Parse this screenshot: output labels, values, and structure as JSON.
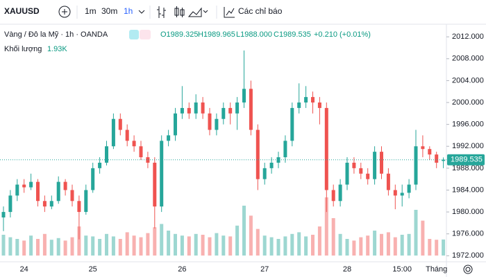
{
  "toolbar": {
    "symbol": "XAUUSD",
    "intervals": [
      "1m",
      "30m",
      "1h"
    ],
    "indicators": "Các chỉ báo"
  },
  "chart_data": {
    "type": "candlestick",
    "title": "Vàng / Đô la Mỹ · 1h · OANDA",
    "ohlc_legend": [
      "O1989.325",
      "H1989.965",
      "L1988.000",
      "C1989.535",
      "+0.210 (+0.01%)"
    ],
    "volume_label": "Khối lượng",
    "volume_value_label": "1.93K",
    "up_color": "#26a69a",
    "down_color": "#ef5350",
    "categories": [
      null,
      null,
      null,
      "24",
      null,
      null,
      null,
      null,
      null,
      null,
      null,
      null,
      null,
      "25",
      null,
      null,
      null,
      null,
      null,
      null,
      null,
      null,
      null,
      null,
      null,
      null,
      "26",
      null,
      null,
      null,
      null,
      null,
      null,
      null,
      null,
      null,
      null,
      null,
      "27",
      null,
      null,
      null,
      null,
      null,
      null,
      null,
      null,
      null,
      null,
      null,
      "28",
      null,
      null,
      null,
      null,
      null,
      null,
      null,
      "15:00",
      null,
      null,
      null,
      null,
      "Tháng",
      null
    ],
    "ohlc": [
      [
        1979,
        1981,
        1976.5,
        1980
      ],
      [
        1980,
        1984,
        1979,
        1983
      ],
      [
        1983,
        1986,
        1982,
        1985
      ],
      [
        1985,
        1986,
        1983.5,
        1984.5
      ],
      [
        1984.5,
        1987,
        1984,
        1985.5
      ],
      [
        1985.5,
        1986,
        1981,
        1982
      ],
      [
        1982,
        1983,
        1980,
        1981
      ],
      [
        1981,
        1983,
        1980.5,
        1982
      ],
      [
        1982,
        1986.5,
        1981.5,
        1985.5
      ],
      [
        1985.5,
        1986,
        1983,
        1984
      ],
      [
        1984,
        1985,
        1981,
        1982
      ],
      [
        1982,
        1983,
        1975,
        1980
      ],
      [
        1980,
        1985,
        1979.5,
        1984
      ],
      [
        1984,
        1989,
        1983.5,
        1988
      ],
      [
        1988,
        1990,
        1987,
        1989
      ],
      [
        1989,
        1993,
        1988.5,
        1992
      ],
      [
        1992,
        1998,
        1991.5,
        1997
      ],
      [
        1997,
        1998,
        1994,
        1995
      ],
      [
        1995,
        1996,
        1992,
        1993
      ],
      [
        1993,
        1994,
        1991,
        1992
      ],
      [
        1992,
        1993,
        1989.5,
        1990
      ],
      [
        1990,
        1991,
        1988,
        1989
      ],
      [
        1989,
        1990,
        1977,
        1981
      ],
      [
        1981,
        1994,
        1980,
        1993
      ],
      [
        1993,
        1995,
        1992,
        1994
      ],
      [
        1994,
        1999,
        1993,
        1998
      ],
      [
        1998,
        2003,
        1997,
        1999
      ],
      [
        1999,
        2000,
        1997,
        1998
      ],
      [
        1998,
        2001.5,
        1997,
        2000
      ],
      [
        2000,
        2001,
        1997,
        1998
      ],
      [
        1998,
        1999,
        1994,
        1995
      ],
      [
        1995,
        1998,
        1994,
        1997
      ],
      [
        1997,
        2000,
        1996,
        1999
      ],
      [
        1999,
        2000,
        1996,
        1998
      ],
      [
        1998,
        2001,
        1995,
        2000
      ],
      [
        2000,
        2009.5,
        1999,
        2002.5
      ],
      [
        2002.5,
        2004,
        1994,
        1995
      ],
      [
        1995,
        1996,
        1984,
        1986
      ],
      [
        1986,
        1989,
        1985,
        1988
      ],
      [
        1988,
        1990,
        1987,
        1989
      ],
      [
        1989,
        1991,
        1988,
        1990
      ],
      [
        1990,
        1994,
        1989,
        1993
      ],
      [
        1993,
        2000,
        1992,
        1999
      ],
      [
        1999,
        2003.5,
        1998,
        2000
      ],
      [
        2000,
        2003,
        1999,
        2001
      ],
      [
        2001,
        2002,
        1998,
        2000
      ],
      [
        2000,
        2001,
        1996,
        1999
      ],
      [
        1999,
        2000,
        1980,
        1984
      ],
      [
        1984,
        1985,
        1981,
        1982
      ],
      [
        1982,
        1986,
        1981,
        1985
      ],
      [
        1985,
        1990,
        1984,
        1989
      ],
      [
        1989,
        1990,
        1987,
        1988
      ],
      [
        1988,
        1989,
        1986,
        1987
      ],
      [
        1987,
        1988,
        1985,
        1986
      ],
      [
        1986,
        1992,
        1985,
        1991
      ],
      [
        1991,
        1992,
        1986,
        1987
      ],
      [
        1987,
        1988,
        1983,
        1984
      ],
      [
        1984,
        1985,
        1980.5,
        1983
      ],
      [
        1983,
        1985,
        1981,
        1983.5
      ],
      [
        1983.5,
        1986,
        1982.5,
        1985
      ],
      [
        1985,
        1995,
        1984,
        1992
      ],
      [
        1992,
        1994,
        1990,
        1991.5
      ],
      [
        1991.5,
        1992,
        1989.5,
        1990.5
      ],
      [
        1990.5,
        1991,
        1988,
        1989
      ],
      [
        1989.325,
        1989.965,
        1988.0,
        1989.535
      ]
    ],
    "volume": [
      2500,
      2200,
      2000,
      1800,
      2400,
      2000,
      2600,
      1900,
      2100,
      1800,
      2200,
      3500,
      2400,
      2300,
      2000,
      2600,
      2300,
      2000,
      2800,
      2400,
      2200,
      2700,
      3400,
      3800,
      3000,
      2600,
      2400,
      2300,
      2600,
      2500,
      2200,
      2700,
      2400,
      2300,
      3600,
      6000,
      4800,
      3200,
      2400,
      2200,
      2000,
      2300,
      2600,
      2800,
      2300,
      2500,
      3500,
      7000,
      4500,
      2600,
      2000,
      1800,
      2200,
      2400,
      3000,
      2600,
      2800,
      2200,
      2500,
      2600,
      5500,
      4200,
      2000,
      1900,
      1930
    ],
    "volume_lim": [
      0,
      10000
    ],
    "ylim": [
      1970.9,
      2014.3
    ],
    "yticks": [
      {
        "value": 2012,
        "label": "2012.000"
      },
      {
        "value": 2008,
        "label": "2008.000"
      },
      {
        "value": 2004,
        "label": "2004.000"
      },
      {
        "value": 2000,
        "label": "2000.000"
      },
      {
        "value": 1996,
        "label": "1996.000"
      },
      {
        "value": 1992,
        "label": "1992.000"
      },
      {
        "value": 1988,
        "label": "1988.000"
      },
      {
        "value": 1984,
        "label": "1984.000"
      },
      {
        "value": 1980,
        "label": "1980.000"
      },
      {
        "value": 1976,
        "label": "1976.000"
      },
      {
        "value": 1972,
        "label": "1972.000"
      }
    ],
    "last_price": 1989.535
  }
}
